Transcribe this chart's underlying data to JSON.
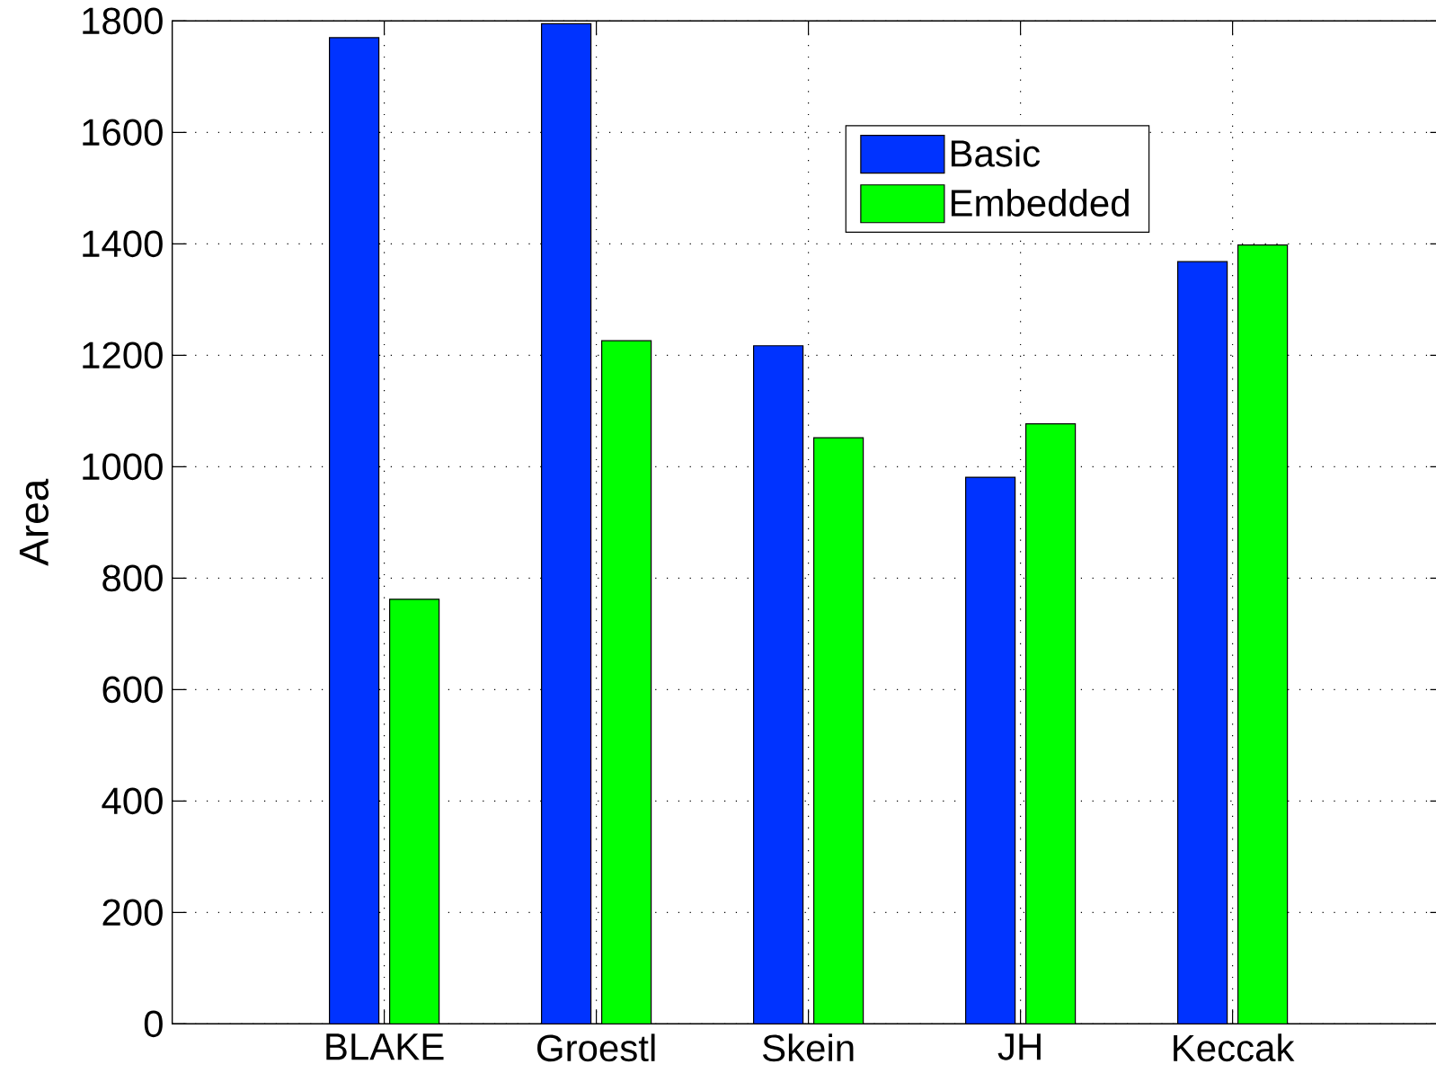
{
  "chart_data": {
    "type": "bar",
    "ylabel": "Area",
    "categories": [
      "BLAKE",
      "Groestl",
      "Skein",
      "JH",
      "Keccak"
    ],
    "series": [
      {
        "name": "Basic",
        "color": "#0033ff",
        "values": [
          1770,
          1795,
          1217,
          981,
          1368
        ]
      },
      {
        "name": "Embedded",
        "color": "#00ff00",
        "values": [
          762,
          1226,
          1052,
          1077,
          1398
        ]
      }
    ],
    "ylim": [
      0,
      1800
    ],
    "yticks": [
      0,
      200,
      400,
      600,
      800,
      1000,
      1200,
      1400,
      1600,
      1800
    ],
    "grid": true,
    "legend": "top right"
  }
}
